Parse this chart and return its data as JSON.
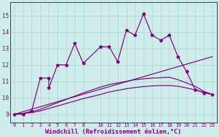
{
  "xlabel": "Windchill (Refroidissement éolien,°C)",
  "bg_color": "#ceecea",
  "line_color": "#800080",
  "grid_color": "#b0d8d5",
  "xlim": [
    -0.5,
    23.5
  ],
  "ylim": [
    8.5,
    15.8
  ],
  "yticks": [
    9,
    10,
    11,
    12,
    13,
    14,
    15
  ],
  "xticks": [
    0,
    1,
    2,
    3,
    4,
    5,
    6,
    7,
    8,
    10,
    11,
    12,
    13,
    14,
    15,
    16,
    17,
    18,
    19,
    20,
    21,
    22,
    23
  ],
  "series1_x": [
    0,
    1,
    2,
    3,
    4,
    4,
    5,
    6,
    7,
    8,
    10,
    11,
    12,
    13,
    14,
    15,
    16,
    17,
    18,
    19,
    20,
    21,
    22,
    23
  ],
  "series1_y": [
    9.0,
    9.0,
    9.2,
    11.2,
    11.2,
    10.6,
    12.0,
    12.0,
    13.3,
    12.1,
    13.1,
    13.1,
    12.2,
    14.1,
    13.8,
    15.1,
    13.8,
    13.5,
    13.8,
    12.5,
    11.6,
    10.5,
    10.3,
    10.2
  ],
  "series2_x": [
    0,
    1,
    2,
    3,
    4,
    5,
    6,
    7,
    8,
    10,
    11,
    12,
    13,
    14,
    15,
    16,
    17,
    18,
    19,
    20,
    21,
    22,
    23
  ],
  "series2_y": [
    9.0,
    9.05,
    9.15,
    9.3,
    9.5,
    9.7,
    9.9,
    10.1,
    10.3,
    10.65,
    10.8,
    10.9,
    11.0,
    11.1,
    11.15,
    11.2,
    11.22,
    11.25,
    11.1,
    10.9,
    10.7,
    10.4,
    10.2
  ],
  "series3_x": [
    0,
    1,
    2,
    3,
    4,
    5,
    6,
    7,
    8,
    10,
    11,
    12,
    13,
    14,
    15,
    16,
    17,
    18,
    19,
    20,
    21,
    22,
    23
  ],
  "series3_y": [
    9.0,
    9.05,
    9.1,
    9.2,
    9.35,
    9.5,
    9.65,
    9.8,
    9.95,
    10.2,
    10.35,
    10.45,
    10.55,
    10.62,
    10.68,
    10.72,
    10.74,
    10.75,
    10.7,
    10.6,
    10.48,
    10.35,
    10.2
  ],
  "series4_x": [
    0,
    23
  ],
  "series4_y": [
    9.0,
    12.5
  ],
  "marker": "*",
  "marker_size": 3.5,
  "linewidth": 0.9,
  "tick_labelsize": 5.2,
  "xlabel_fontsize": 6.5,
  "tick_color": "#800080",
  "label_color": "#800080"
}
